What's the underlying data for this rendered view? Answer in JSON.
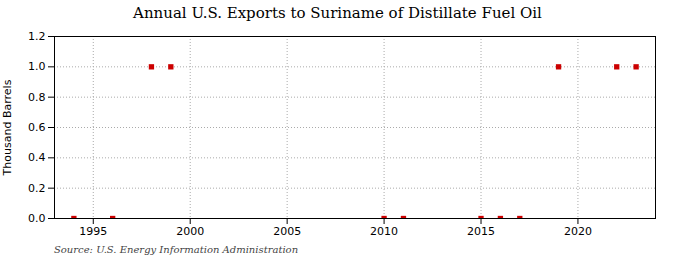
{
  "chart_data": {
    "type": "scatter",
    "title": "Annual U.S. Exports to Suriname of Distillate Fuel Oil",
    "ylabel": "Thousand Barrels",
    "annotations": [
      "Source: U.S. Energy Information Administration"
    ],
    "x": [
      1994,
      1996,
      1998,
      1999,
      2010,
      2011,
      2015,
      2016,
      2017,
      2019,
      2022,
      2023
    ],
    "values": [
      0,
      0,
      1,
      1,
      0,
      0,
      0,
      0,
      0,
      1,
      1,
      1
    ],
    "color": "#cc0000",
    "marker": "square",
    "xlim": [
      1993,
      2024
    ],
    "xticks": [
      1995,
      2000,
      2005,
      2010,
      2015,
      2020
    ],
    "ylim": [
      0.0,
      1.2
    ],
    "yticks": [
      {
        "value": 0.0,
        "label": "0.0"
      },
      0.2,
      0.4,
      0.6,
      0.8,
      {
        "value": 1.0,
        "label": "1.0"
      },
      1.2
    ],
    "grid": true
  }
}
